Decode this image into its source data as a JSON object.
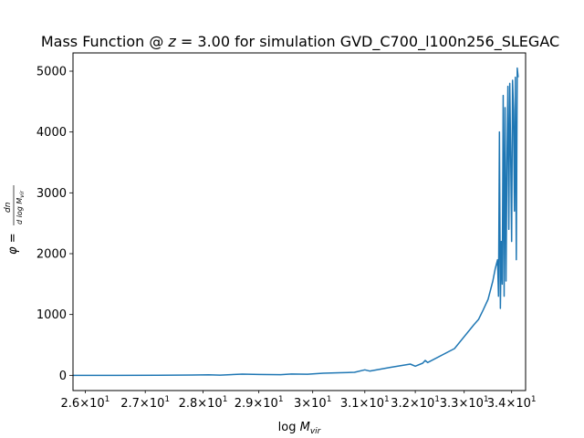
{
  "chart_data": {
    "type": "line",
    "title": "Mass Function @ z = 3.00 for simulation GVD_C700_l100n256_SLEGAC",
    "title_parts": {
      "prefix": "Mass Function @ ",
      "z_symbol": "z",
      "z_value": " = 3.00 for simulation GVD_C700_l100n256_SLEGAC"
    },
    "xlabel": "log M_vir",
    "xlabel_parts": {
      "base": "log ",
      "symbol": "M",
      "sub": "vir"
    },
    "ylabel": "φ = dn / d log M_vir",
    "ylabel_parts": {
      "phi": "φ = ",
      "num": "dn",
      "den": "d log M",
      "den_sub": "vir"
    },
    "x_scale": "log",
    "xlim": [
      25.8,
      34.3
    ],
    "ylim": [
      -250,
      5300
    ],
    "grid": false,
    "legend": "none",
    "x_ticks": [
      {
        "value": 26,
        "mantissa": "2.6",
        "base": "10",
        "exp": "1"
      },
      {
        "value": 27,
        "mantissa": "2.7",
        "base": "10",
        "exp": "1"
      },
      {
        "value": 28,
        "mantissa": "2.8",
        "base": "10",
        "exp": "1"
      },
      {
        "value": 29,
        "mantissa": "2.9",
        "base": "10",
        "exp": "1"
      },
      {
        "value": 30,
        "mantissa": "3",
        "base": "10",
        "exp": "1"
      },
      {
        "value": 31,
        "mantissa": "3.1",
        "base": "10",
        "exp": "1"
      },
      {
        "value": 32,
        "mantissa": "3.2",
        "base": "10",
        "exp": "1"
      },
      {
        "value": 33,
        "mantissa": "3.3",
        "base": "10",
        "exp": "1"
      },
      {
        "value": 34,
        "mantissa": "3.4",
        "base": "10",
        "exp": "1"
      }
    ],
    "y_ticks": [
      0,
      1000,
      2000,
      3000,
      4000,
      5000
    ],
    "series": [
      {
        "color": "#1f77b4",
        "x": [
          25.8,
          26.5,
          27.2,
          27.8,
          28.1,
          28.3,
          28.7,
          29.0,
          29.4,
          29.6,
          29.9,
          30.2,
          30.5,
          30.8,
          31.0,
          31.1,
          31.5,
          31.9,
          32.0,
          32.15,
          32.2,
          32.25,
          32.8,
          33.2,
          33.3,
          33.4,
          33.5,
          33.55,
          33.6,
          33.65,
          33.7,
          33.72,
          33.74,
          33.76,
          33.78,
          33.8,
          33.82,
          33.84,
          33.86,
          33.88,
          33.9,
          33.92,
          33.94,
          33.96,
          33.98,
          34.0,
          34.02,
          34.04,
          34.06,
          34.08,
          34.1,
          34.12,
          34.14
        ],
        "y": [
          0,
          0,
          2,
          5,
          8,
          3,
          20,
          15,
          10,
          22,
          18,
          35,
          42,
          50,
          90,
          70,
          130,
          185,
          150,
          200,
          245,
          210,
          440,
          830,
          920,
          1080,
          1250,
          1400,
          1550,
          1750,
          1900,
          1300,
          4000,
          1100,
          2200,
          1500,
          4600,
          1300,
          4400,
          1550,
          3500,
          4750,
          2400,
          4800,
          3600,
          2200,
          4850,
          4350,
          2700,
          4900,
          1900,
          5050,
          4900
        ]
      }
    ]
  }
}
